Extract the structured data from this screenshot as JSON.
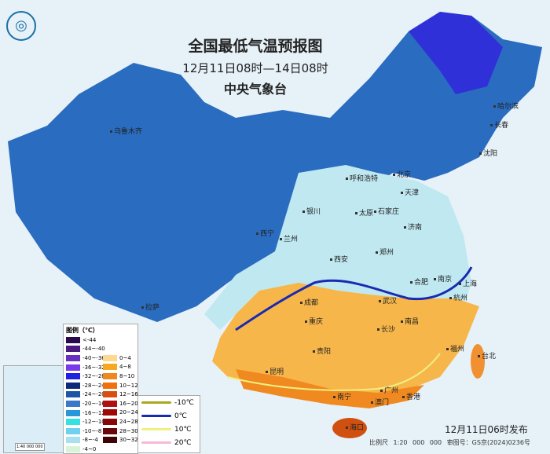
{
  "header": {
    "title": "全国最低气温预报图",
    "period": "12月11日08时—14日08时",
    "agency": "中央气象台"
  },
  "cities": [
    "乌鲁木齐",
    "哈尔滨",
    "长春",
    "沈阳",
    "呼和浩特",
    "北京",
    "天津",
    "银川",
    "太原",
    "石家庄",
    "济南",
    "西宁",
    "兰州",
    "西安",
    "郑州",
    "合肥",
    "南京",
    "上海",
    "杭州",
    "成都",
    "武汉",
    "重庆",
    "南昌",
    "长沙",
    "拉萨",
    "贵阳",
    "福州",
    "台北",
    "昆明",
    "南宁",
    "广州",
    "香港",
    "澳门",
    "海口"
  ],
  "legend": {
    "title": "图例（℃）",
    "cold": [
      {
        "label": "<-44",
        "color": "#2a0a4a"
      },
      {
        "label": "-44~-40",
        "color": "#4b1a80"
      },
      {
        "label": "-40~-36",
        "color": "#6a30c0"
      },
      {
        "label": "-36~-32",
        "color": "#7a3ae8"
      },
      {
        "label": "-32~-28",
        "color": "#2020e0"
      },
      {
        "label": "-28~-24",
        "color": "#102878"
      },
      {
        "label": "-24~-20",
        "color": "#1d56a8"
      },
      {
        "label": "-20~-16",
        "color": "#3a78c8"
      },
      {
        "label": "-16~-12",
        "color": "#2898d8"
      },
      {
        "label": "-12~-10",
        "color": "#38e0e0"
      },
      {
        "label": "-10~-8",
        "color": "#70d0f0"
      },
      {
        "label": "-8~-4",
        "color": "#a8e0f0"
      },
      {
        "label": "-4~0",
        "color": "#d8f4d8"
      }
    ],
    "warm": [
      {
        "label": "0~4",
        "color": "#fcd890"
      },
      {
        "label": "4~8",
        "color": "#f8a820"
      },
      {
        "label": "8~10",
        "color": "#f08820"
      },
      {
        "label": "10~12",
        "color": "#f07010"
      },
      {
        "label": "12~16",
        "color": "#d85010"
      },
      {
        "label": "16~20",
        "color": "#b01010"
      },
      {
        "label": "20~24",
        "color": "#a00808"
      },
      {
        "label": "24~28",
        "color": "#880808"
      },
      {
        "label": "28~30",
        "color": "#680808"
      },
      {
        "label": "30~32",
        "color": "#400404"
      }
    ],
    "isotherms": [
      {
        "label": "-10℃",
        "color": "#a8a820"
      },
      {
        "label": "0℃",
        "color": "#1a2ab0"
      },
      {
        "label": "10℃",
        "color": "#f0f080"
      },
      {
        "label": "20℃",
        "color": "#f8b8d8"
      }
    ]
  },
  "inset": {
    "scale": "1:40 000 000"
  },
  "footer": {
    "issued": "12月11日06时发布",
    "scale": "比例尺 1:20 000 000",
    "review": "审图号：GS京(2024)0236号"
  }
}
